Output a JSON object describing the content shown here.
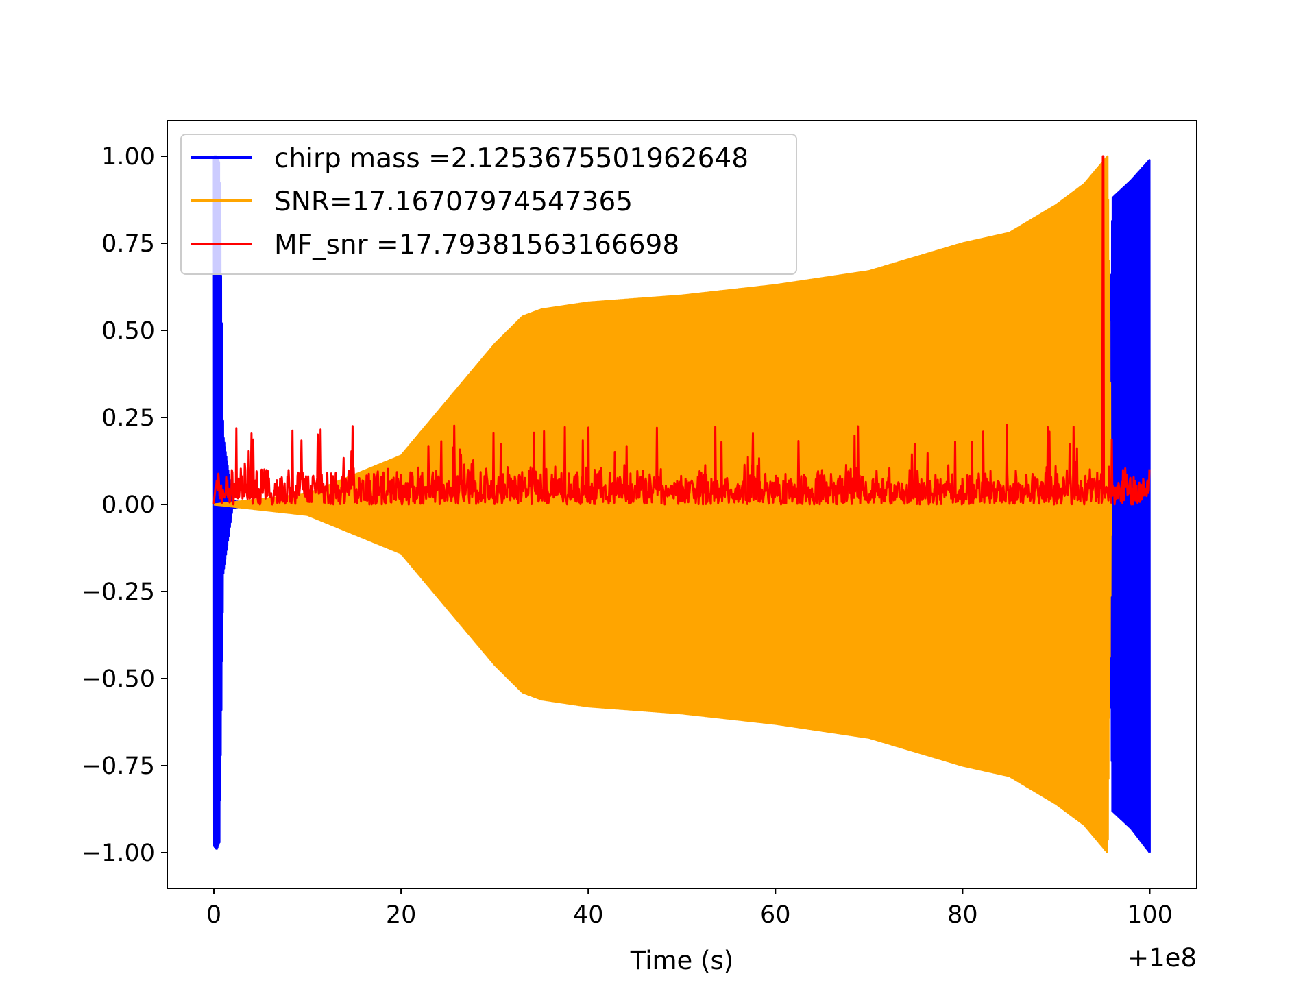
{
  "chart_data": {
    "type": "line",
    "title": "",
    "xlabel": "Time (s)",
    "ylabel": "",
    "x_offset_label": "+1e8",
    "xlim": [
      -5,
      105
    ],
    "ylim": [
      -1.1,
      1.1
    ],
    "x_ticks": [
      0,
      20,
      40,
      60,
      80,
      100
    ],
    "x_tick_labels": [
      "0",
      "20",
      "40",
      "60",
      "80",
      "100"
    ],
    "y_ticks": [
      1.0,
      0.75,
      0.5,
      0.25,
      0.0,
      -0.25,
      -0.5,
      -0.75,
      -1.0
    ],
    "y_tick_labels": [
      "1.00",
      "0.75",
      "0.50",
      "0.25",
      "0.00",
      "−0.25",
      "−0.50",
      "−0.75",
      "−1.00"
    ],
    "grid": false,
    "legend_position": "upper-left",
    "series": [
      {
        "name": "chirp mass =2.1253675501962648",
        "color": "#0000ff",
        "kind": "oscillating-envelope",
        "envelope": {
          "x": [
            0,
            0.3,
            0.6,
            0.8,
            1.0,
            2.0,
            5,
            95.6,
            96.0,
            98,
            100.0
          ],
          "upper": [
            1.0,
            1.0,
            0.98,
            0.6,
            0.2,
            0.01,
            0.0,
            0.0,
            0.88,
            0.93,
            0.99
          ],
          "lower": [
            -0.98,
            -0.99,
            -0.97,
            -0.6,
            -0.2,
            -0.01,
            0.0,
            0.0,
            -0.88,
            -0.93,
            -1.0
          ]
        }
      },
      {
        "name": "SNR=17.16707974547365",
        "color": "#ffa500",
        "kind": "oscillating-envelope",
        "envelope": {
          "x": [
            0,
            10,
            20,
            25,
            30,
            33,
            35,
            40,
            50,
            60,
            65,
            70,
            80,
            85,
            90,
            93,
            95.5,
            95.9
          ],
          "upper": [
            0.0,
            0.03,
            0.14,
            0.3,
            0.46,
            0.54,
            0.56,
            0.58,
            0.6,
            0.63,
            0.65,
            0.67,
            0.75,
            0.78,
            0.86,
            0.92,
            1.0,
            0.0
          ],
          "lower": [
            0.0,
            -0.03,
            -0.14,
            -0.3,
            -0.46,
            -0.54,
            -0.56,
            -0.58,
            -0.6,
            -0.63,
            -0.65,
            -0.67,
            -0.75,
            -0.78,
            -0.86,
            -0.92,
            -1.0,
            0.0
          ]
        }
      },
      {
        "name": "MF_snr =17.79381563166698",
        "color": "#ff0000",
        "kind": "noise-with-peak",
        "x_range": [
          0,
          100
        ],
        "baseline": 0.0,
        "typical_max": 0.12,
        "spike_max": 0.23,
        "peak": {
          "x": 95.0,
          "y": 1.0
        }
      }
    ]
  }
}
